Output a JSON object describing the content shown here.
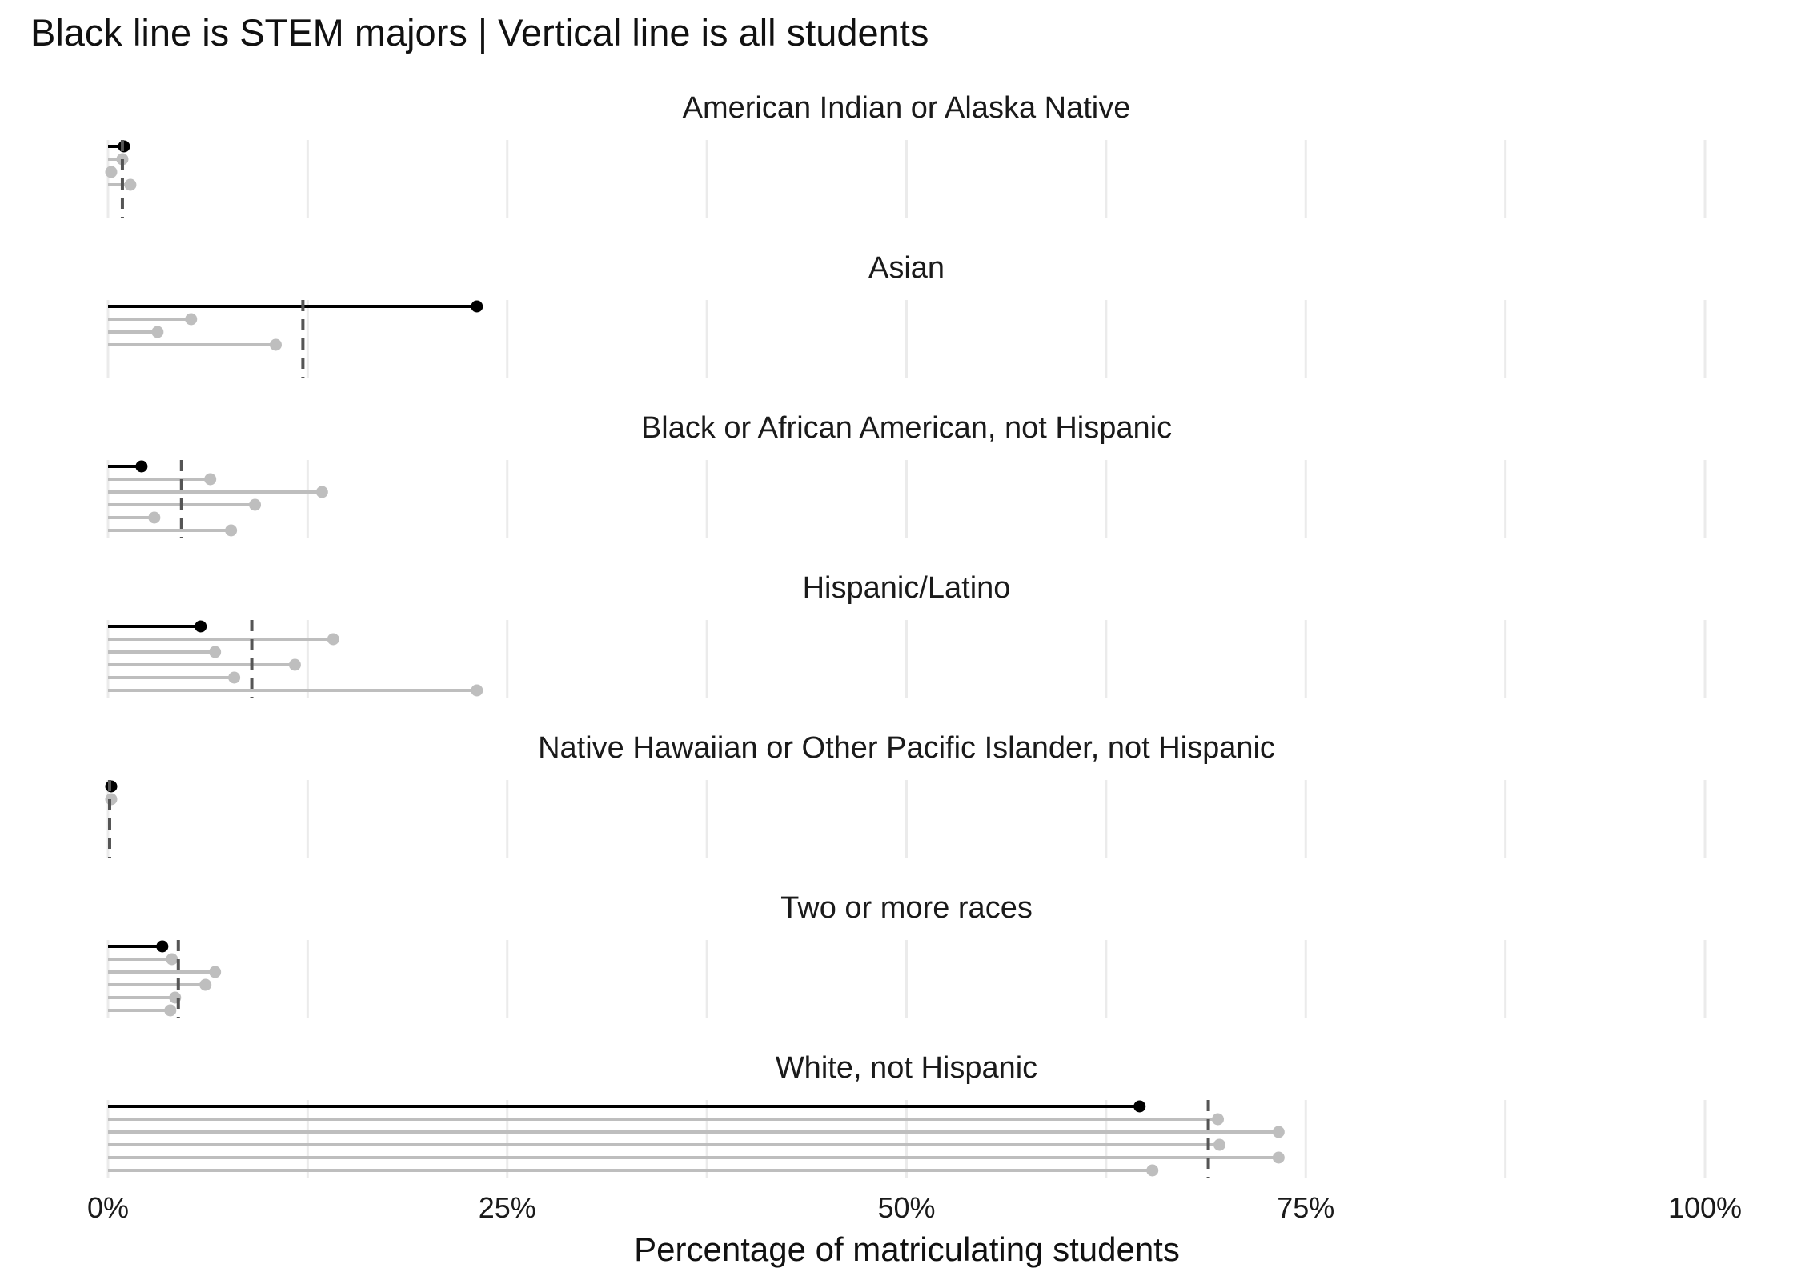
{
  "chart_data": {
    "type": "lollipop",
    "title": "Black line is STEM majors | Vertical line is all students",
    "xlabel": "Percentage of matriculating students",
    "xlim": [
      0,
      1
    ],
    "x_ticks": [
      0,
      0.25,
      0.5,
      0.75,
      1.0
    ],
    "x_tick_labels": [
      "0%",
      "25%",
      "50%",
      "75%",
      "100%"
    ],
    "grid": true,
    "colors": {
      "stem": "#000000",
      "other": "#bebebe",
      "all_students_line": "#555555",
      "grid": "#ebebeb"
    },
    "facets": [
      {
        "name": "American Indian or Alaska Native",
        "stem": 0.01,
        "all_students": 0.009,
        "others": [
          0.009,
          0.002,
          0.014
        ]
      },
      {
        "name": "Asian",
        "stem": 0.231,
        "all_students": 0.122,
        "others": [
          0.052,
          0.031,
          0.105
        ]
      },
      {
        "name": "Black or African American, not Hispanic",
        "stem": 0.021,
        "all_students": 0.046,
        "others": [
          0.064,
          0.134,
          0.092,
          0.029,
          0.077
        ]
      },
      {
        "name": "Hispanic/Latino",
        "stem": 0.058,
        "all_students": 0.09,
        "others": [
          0.141,
          0.067,
          0.117,
          0.079,
          0.231
        ]
      },
      {
        "name": "Native Hawaiian or Other Pacific Islander, not Hispanic",
        "stem": 0.002,
        "all_students": 0.001,
        "others": [
          0.002
        ]
      },
      {
        "name": "Two or more races",
        "stem": 0.034,
        "all_students": 0.044,
        "others": [
          0.04,
          0.067,
          0.061,
          0.042,
          0.039
        ]
      },
      {
        "name": "White, not Hispanic",
        "stem": 0.646,
        "all_students": 0.689,
        "others": [
          0.695,
          0.733,
          0.696,
          0.733,
          0.654
        ]
      }
    ]
  }
}
